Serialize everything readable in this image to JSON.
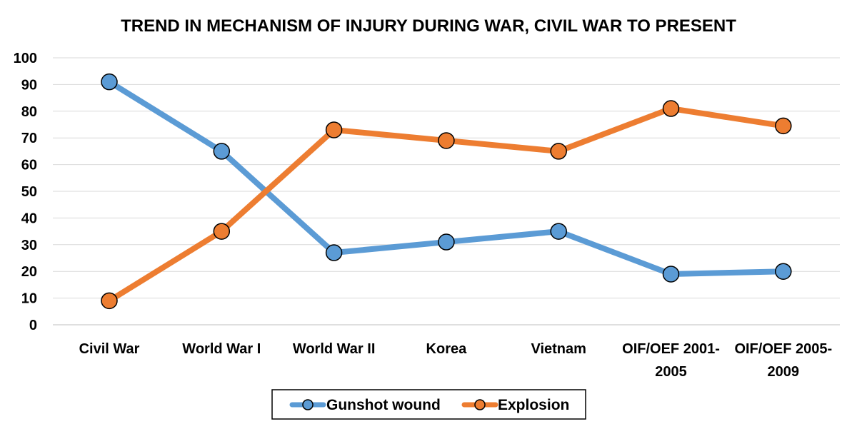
{
  "chart_data": {
    "type": "line",
    "title": "TREND IN MECHANISM OF INJURY DURING WAR, CIVIL WAR TO PRESENT",
    "xlabel": "",
    "ylabel": "",
    "ylim": [
      0,
      100
    ],
    "yticks": [
      "0",
      "10",
      "20",
      "30",
      "40",
      "50",
      "60",
      "70",
      "80",
      "90",
      "100"
    ],
    "categories": [
      [
        "Civil War"
      ],
      [
        "World War I"
      ],
      [
        "World War II"
      ],
      [
        "Korea"
      ],
      [
        "Vietnam"
      ],
      [
        "OIF/OEF 2001-",
        "2005"
      ],
      [
        "OIF/OEF 2005-",
        "2009"
      ]
    ],
    "grid": true,
    "legend_position": "bottom",
    "series": [
      {
        "name": "Gunshot wound",
        "color": "#5B9BD5",
        "values": [
          91,
          65,
          27,
          31,
          35,
          19,
          20
        ]
      },
      {
        "name": "Explosion",
        "color": "#ED7D31",
        "values": [
          9,
          35,
          73,
          69,
          65,
          81,
          74.5
        ]
      }
    ]
  }
}
